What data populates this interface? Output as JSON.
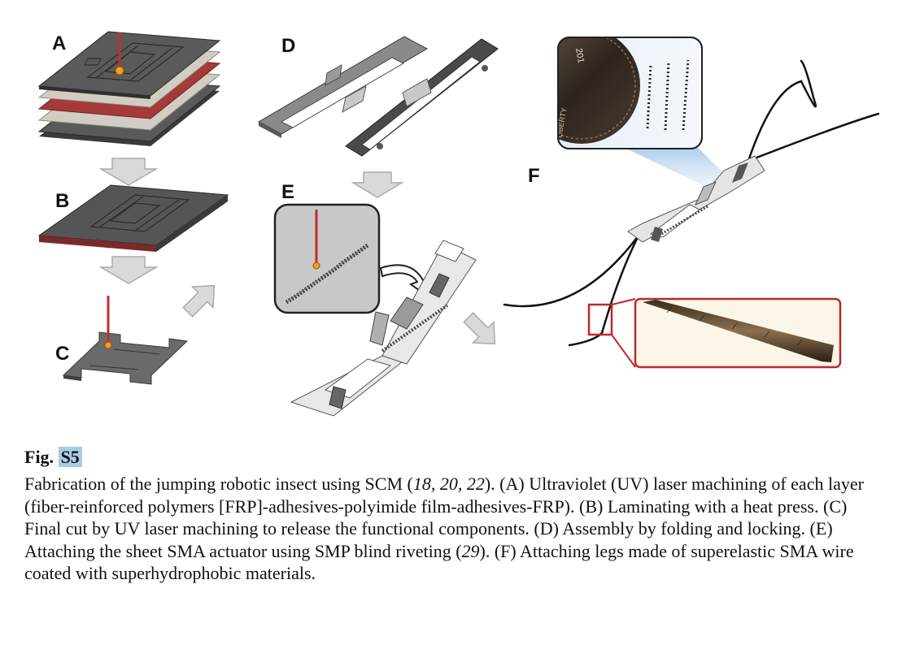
{
  "panels": {
    "a": "A",
    "b": "B",
    "c": "C",
    "d": "D",
    "e": "E",
    "f": "F"
  },
  "coin_text": "201",
  "coin_rim_text": "LIBERTY",
  "caption": {
    "fig_prefix": "Fig. ",
    "fig_number": "S5",
    "seg1": "Fabrication of the jumping robotic insect using SCM (",
    "ref1": "18, 20, 22",
    "seg2": "). (A) Ultraviolet (UV) laser machining of each layer (fiber-reinforced polymers [FRP]-adhesives-polyimide film-adhesives-FRP). (B) Laminating with a heat press. (C) Final cut by UV laser machining to release the functional components. (D) Assembly by folding and locking. (E) Attaching the sheet SMA actuator using SMP blind riveting (",
    "ref2": "29",
    "seg3": "). (F) Attaching legs made of superelastic SMA wire coated with superhydrophobic materials."
  },
  "colors": {
    "frp": "#505050",
    "adhesive": "#c8c3b8",
    "polyimide": "#a53a3a",
    "laser": "#c03030",
    "arrow": "#d9d9d9",
    "highlight": "#a9cbe4",
    "zoom_box": "#c0282a"
  }
}
